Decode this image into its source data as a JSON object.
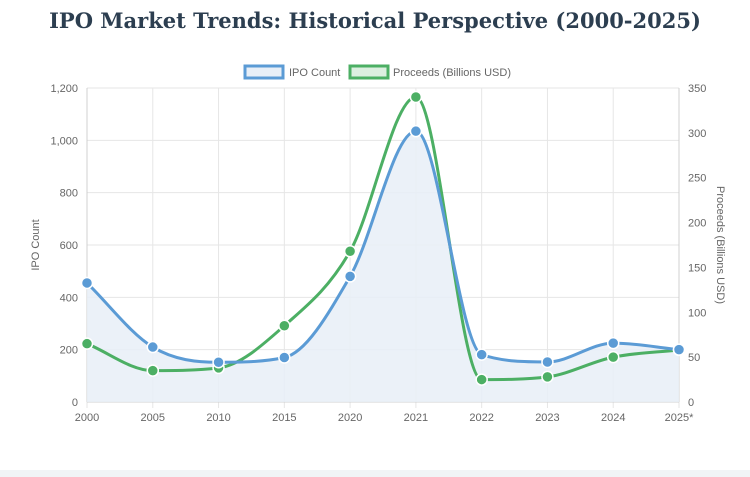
{
  "title": "IPO Market Trends: Historical Perspective (2000-2025)",
  "colors": {
    "ipo_line": "#5b9bd5",
    "ipo_fill": "#e8eff7",
    "proceeds_line": "#4caf64",
    "proceeds_fill": "#dcefe0",
    "grid": "#e6e6e6",
    "text": "#666666"
  },
  "chart_data": {
    "type": "line",
    "categories": [
      "2000",
      "2005",
      "2010",
      "2015",
      "2020",
      "2021",
      "2022",
      "2023",
      "2024",
      "2025*"
    ],
    "series": [
      {
        "name": "IPO Count",
        "axis": "left",
        "fill": true,
        "values": [
          455,
          210,
          152,
          170,
          480,
          1035,
          181,
          153,
          225,
          200
        ]
      },
      {
        "name": "Proceeds (Billions USD)",
        "axis": "right",
        "fill": false,
        "values": [
          65,
          35,
          38,
          85,
          168,
          340,
          25,
          28,
          50,
          58
        ]
      }
    ],
    "ylabel": "IPO Count",
    "ylabel_right": "Proceeds (Billions USD)",
    "ylim": [
      0,
      1200
    ],
    "ylim_right": [
      0,
      350
    ],
    "yticks": [
      "0",
      "200",
      "400",
      "600",
      "800",
      "1,000",
      "1,200"
    ],
    "yticks_right": [
      "0",
      "50",
      "100",
      "150",
      "200",
      "250",
      "300",
      "350"
    ],
    "grid": true,
    "legend": "top-center"
  }
}
